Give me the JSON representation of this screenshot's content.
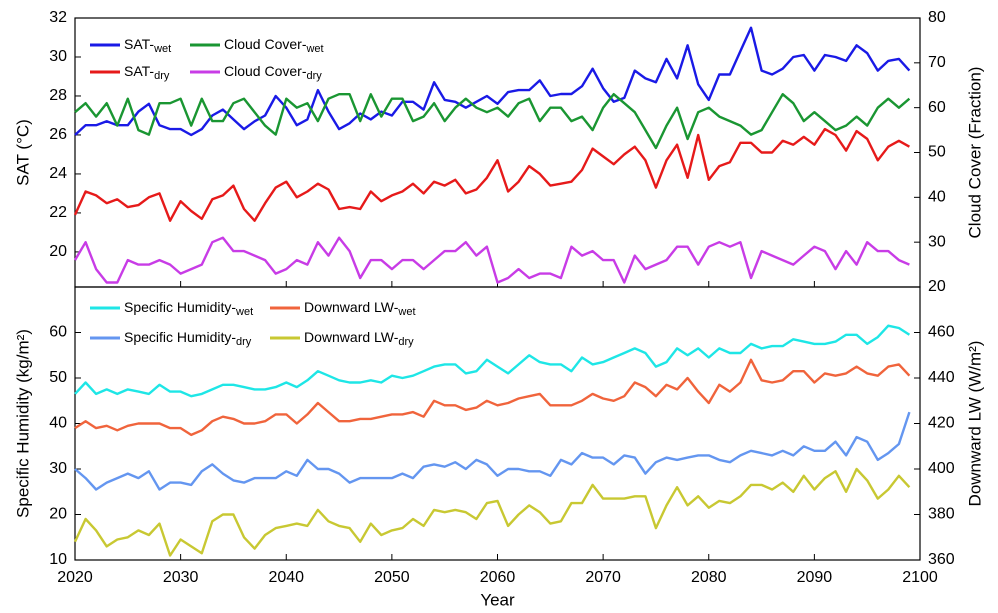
{
  "chart_data": [
    {
      "type": "line",
      "ylabel": "SAT (°C)",
      "y2label": "Cloud Cover (Fraction)",
      "x": [
        2020,
        2021,
        2022,
        2023,
        2024,
        2025,
        2026,
        2027,
        2028,
        2029,
        2030,
        2031,
        2032,
        2033,
        2034,
        2035,
        2036,
        2037,
        2038,
        2039,
        2040,
        2041,
        2042,
        2043,
        2044,
        2045,
        2046,
        2047,
        2048,
        2049,
        2050,
        2051,
        2052,
        2053,
        2054,
        2055,
        2056,
        2057,
        2058,
        2059,
        2060,
        2061,
        2062,
        2063,
        2064,
        2065,
        2066,
        2067,
        2068,
        2069,
        2070,
        2071,
        2072,
        2073,
        2074,
        2075,
        2076,
        2077,
        2078,
        2079,
        2080,
        2081,
        2082,
        2083,
        2084,
        2085,
        2086,
        2087,
        2088,
        2089,
        2090,
        2091,
        2092,
        2093,
        2094,
        2095,
        2096,
        2097,
        2098,
        2099
      ],
      "xlim": [
        2020,
        2100
      ],
      "ylim": [
        18.2,
        32
      ],
      "yticks": [
        20,
        22,
        24,
        26,
        28,
        30,
        32
      ],
      "y2lim": [
        20,
        80
      ],
      "y2ticks": [
        20,
        30,
        40,
        50,
        60,
        70,
        80
      ],
      "legend": "upper left",
      "series": [
        {
          "name": "SAT-wet",
          "color": "#1a1ae6",
          "values": [
            26.0,
            26.5,
            26.5,
            26.7,
            26.5,
            26.5,
            27.2,
            27.6,
            26.5,
            26.3,
            26.3,
            26.0,
            26.3,
            27.0,
            27.3,
            26.8,
            26.3,
            26.7,
            27.0,
            28.0,
            27.4,
            26.5,
            26.8,
            28.3,
            27.2,
            26.3,
            26.6,
            27.1,
            26.8,
            27.2,
            27.0,
            27.7,
            27.7,
            27.3,
            28.7,
            27.8,
            27.7,
            27.4,
            27.7,
            28.0,
            27.6,
            28.2,
            28.3,
            28.3,
            28.8,
            28.0,
            28.1,
            28.1,
            28.5,
            29.4,
            28.4,
            27.7,
            27.9,
            29.3,
            28.9,
            28.7,
            29.9,
            28.9,
            30.6,
            28.6,
            27.8,
            29.1,
            29.1,
            30.3,
            31.5,
            29.3,
            29.1,
            29.4,
            30.0,
            30.1,
            29.3,
            30.1,
            30.0,
            29.8,
            30.6,
            30.2,
            29.3,
            29.8,
            29.9,
            29.3
          ]
        },
        {
          "name": "Cloud Cover-wet",
          "color": "#1a9632",
          "axis": "y2",
          "values": [
            59,
            61,
            58,
            61,
            56,
            62,
            55,
            54,
            61,
            61,
            62,
            56,
            62,
            57,
            57,
            61,
            62,
            59,
            56,
            54,
            62,
            60,
            61,
            57,
            62,
            63,
            63,
            57,
            63,
            58,
            62,
            62,
            57,
            58,
            61,
            57,
            60,
            62,
            60,
            59,
            60,
            58,
            61,
            62,
            57,
            60,
            60,
            57,
            58,
            55,
            60,
            63,
            61,
            59,
            55,
            51,
            56,
            60,
            53,
            59,
            60,
            58,
            57,
            56,
            54,
            55,
            59,
            63,
            61,
            57,
            59,
            57,
            55,
            56,
            58,
            56,
            60,
            62,
            60,
            62
          ]
        },
        {
          "name": "SAT-dry",
          "color": "#e61a1a",
          "values": [
            21.9,
            23.1,
            22.9,
            22.5,
            22.7,
            22.3,
            22.4,
            22.8,
            23.0,
            21.6,
            22.6,
            22.1,
            21.7,
            22.7,
            22.9,
            23.4,
            22.2,
            21.6,
            22.5,
            23.3,
            23.6,
            22.8,
            23.1,
            23.5,
            23.2,
            22.2,
            22.3,
            22.2,
            23.1,
            22.6,
            22.9,
            23.1,
            23.5,
            23.0,
            23.6,
            23.4,
            23.7,
            23.0,
            23.2,
            23.8,
            24.7,
            23.1,
            23.6,
            24.4,
            24.0,
            23.4,
            23.5,
            23.6,
            24.2,
            25.3,
            24.9,
            24.5,
            25.0,
            25.4,
            24.7,
            23.3,
            24.7,
            25.5,
            23.8,
            26.0,
            23.7,
            24.4,
            24.6,
            25.6,
            25.6,
            25.1,
            25.1,
            25.7,
            25.5,
            25.9,
            25.5,
            26.3,
            26.0,
            25.2,
            26.2,
            25.8,
            24.7,
            25.4,
            25.7,
            25.4
          ]
        },
        {
          "name": "Cloud Cover-dry",
          "color": "#c83ce6",
          "axis": "y2",
          "values": [
            26,
            30,
            24,
            21,
            21,
            26,
            25,
            25,
            26,
            25,
            23,
            24,
            25,
            30,
            31,
            28,
            28,
            27,
            26,
            23,
            24,
            26,
            25,
            30,
            27,
            31,
            28,
            22,
            26,
            26,
            24,
            26,
            26,
            24,
            26,
            28,
            28,
            30,
            27,
            29,
            21,
            22,
            24,
            22,
            23,
            23,
            22,
            29,
            27,
            28,
            26,
            26,
            21,
            27,
            24,
            25,
            26,
            29,
            29,
            25,
            29,
            30,
            29,
            30,
            22,
            28,
            27,
            26,
            25,
            27,
            29,
            28,
            24,
            28,
            25,
            30,
            28,
            28,
            26,
            25
          ]
        }
      ]
    },
    {
      "type": "line",
      "xlabel": "Year",
      "ylabel": "Specific Humidity (kg/m²)",
      "y2label": "Downward LW (W/m²)",
      "x": [
        2020,
        2021,
        2022,
        2023,
        2024,
        2025,
        2026,
        2027,
        2028,
        2029,
        2030,
        2031,
        2032,
        2033,
        2034,
        2035,
        2036,
        2037,
        2038,
        2039,
        2040,
        2041,
        2042,
        2043,
        2044,
        2045,
        2046,
        2047,
        2048,
        2049,
        2050,
        2051,
        2052,
        2053,
        2054,
        2055,
        2056,
        2057,
        2058,
        2059,
        2060,
        2061,
        2062,
        2063,
        2064,
        2065,
        2066,
        2067,
        2068,
        2069,
        2070,
        2071,
        2072,
        2073,
        2074,
        2075,
        2076,
        2077,
        2078,
        2079,
        2080,
        2081,
        2082,
        2083,
        2084,
        2085,
        2086,
        2087,
        2088,
        2089,
        2090,
        2091,
        2092,
        2093,
        2094,
        2095,
        2096,
        2097,
        2098,
        2099
      ],
      "xlim": [
        2020,
        2100
      ],
      "xticks": [
        2020,
        2030,
        2040,
        2050,
        2060,
        2070,
        2080,
        2090,
        2100
      ],
      "ylim": [
        10,
        70
      ],
      "yticks": [
        10,
        20,
        30,
        40,
        50,
        60
      ],
      "y2lim": [
        360,
        480
      ],
      "y2ticks": [
        360,
        380,
        400,
        420,
        440,
        460
      ],
      "legend": "upper left",
      "series": [
        {
          "name": "Specific Humidity-wet",
          "color": "#1ee6e6",
          "values": [
            46.5,
            49,
            46.5,
            47.5,
            46.5,
            47.5,
            47,
            46.5,
            48.5,
            47,
            47,
            46,
            46.5,
            47.5,
            48.5,
            48.5,
            48,
            47.5,
            47.5,
            48,
            49,
            48,
            49.5,
            51.5,
            50.5,
            49.5,
            49,
            49,
            49.5,
            49,
            50.5,
            50,
            50.5,
            51.5,
            52.5,
            53,
            53,
            51,
            51.5,
            54,
            52.5,
            51,
            53,
            55,
            53.5,
            53,
            53,
            51.5,
            54.5,
            53,
            53.5,
            54.5,
            55.5,
            56.5,
            55.5,
            52.5,
            53.5,
            56.5,
            55,
            56.5,
            54.5,
            56.5,
            55.5,
            55.5,
            57.5,
            56.5,
            57,
            57,
            58.5,
            58,
            57.5,
            57.5,
            58,
            59.5,
            59.5,
            57.5,
            59,
            61.5,
            61,
            59.5
          ]
        },
        {
          "name": "Downward LW-wet",
          "color": "#f0643c",
          "axis": "y2",
          "values": [
            418,
            421,
            418,
            419,
            417,
            419,
            420,
            420,
            420,
            418,
            418,
            415,
            417,
            421,
            423,
            422,
            420,
            420,
            421,
            424,
            424,
            420,
            424,
            429,
            425,
            421,
            421,
            422,
            422,
            423,
            424,
            424,
            425,
            423,
            430,
            428,
            428,
            426,
            427,
            430,
            428,
            429,
            431,
            432,
            433,
            428,
            428,
            428,
            430,
            433,
            431,
            430,
            432,
            438,
            436,
            432,
            437,
            435,
            440,
            434,
            429,
            437,
            434,
            438,
            448,
            439,
            438,
            439,
            443,
            443,
            438,
            442,
            441,
            442,
            445,
            442,
            441,
            445,
            446,
            441
          ]
        },
        {
          "name": "Specific Humidity-dry",
          "color": "#6496f0",
          "values": [
            30,
            28,
            25.5,
            27,
            28,
            29,
            28,
            29.5,
            25.5,
            27,
            27,
            26.5,
            29.5,
            31,
            29,
            27.5,
            27,
            28,
            28,
            28,
            29.5,
            28.5,
            32,
            30,
            30,
            29,
            27,
            28,
            28,
            28,
            28,
            29,
            28,
            30.5,
            31,
            30.5,
            31.5,
            30,
            32,
            31,
            28.5,
            30,
            30,
            29.5,
            29.5,
            28.5,
            32,
            31,
            33.5,
            32.5,
            32.5,
            31,
            33,
            32.5,
            29,
            31.5,
            32.5,
            32,
            32.5,
            33,
            33,
            32,
            31.5,
            33,
            34,
            33.5,
            33,
            34,
            33,
            35,
            34,
            34,
            36,
            33,
            37,
            36,
            32,
            33.5,
            35.5,
            42.5
          ]
        },
        {
          "name": "Downward LW-dry",
          "color": "#c8c832",
          "axis": "y2",
          "values": [
            368,
            378,
            373,
            366,
            369,
            370,
            373,
            371,
            376,
            362,
            369,
            366,
            363,
            377,
            380,
            380,
            370,
            365,
            371,
            374,
            375,
            376,
            375,
            382,
            377,
            375,
            374,
            368,
            376,
            371,
            373,
            374,
            378,
            375,
            382,
            381,
            382,
            381,
            378,
            385,
            386,
            375,
            380,
            384,
            381,
            376,
            377,
            385,
            385,
            393,
            387,
            387,
            387,
            388,
            388,
            374,
            384,
            392,
            384,
            388,
            383,
            386,
            385,
            388,
            393,
            393,
            391,
            394,
            390,
            397,
            391,
            396,
            399,
            390,
            400,
            395,
            387,
            391,
            397,
            392
          ]
        }
      ]
    }
  ]
}
